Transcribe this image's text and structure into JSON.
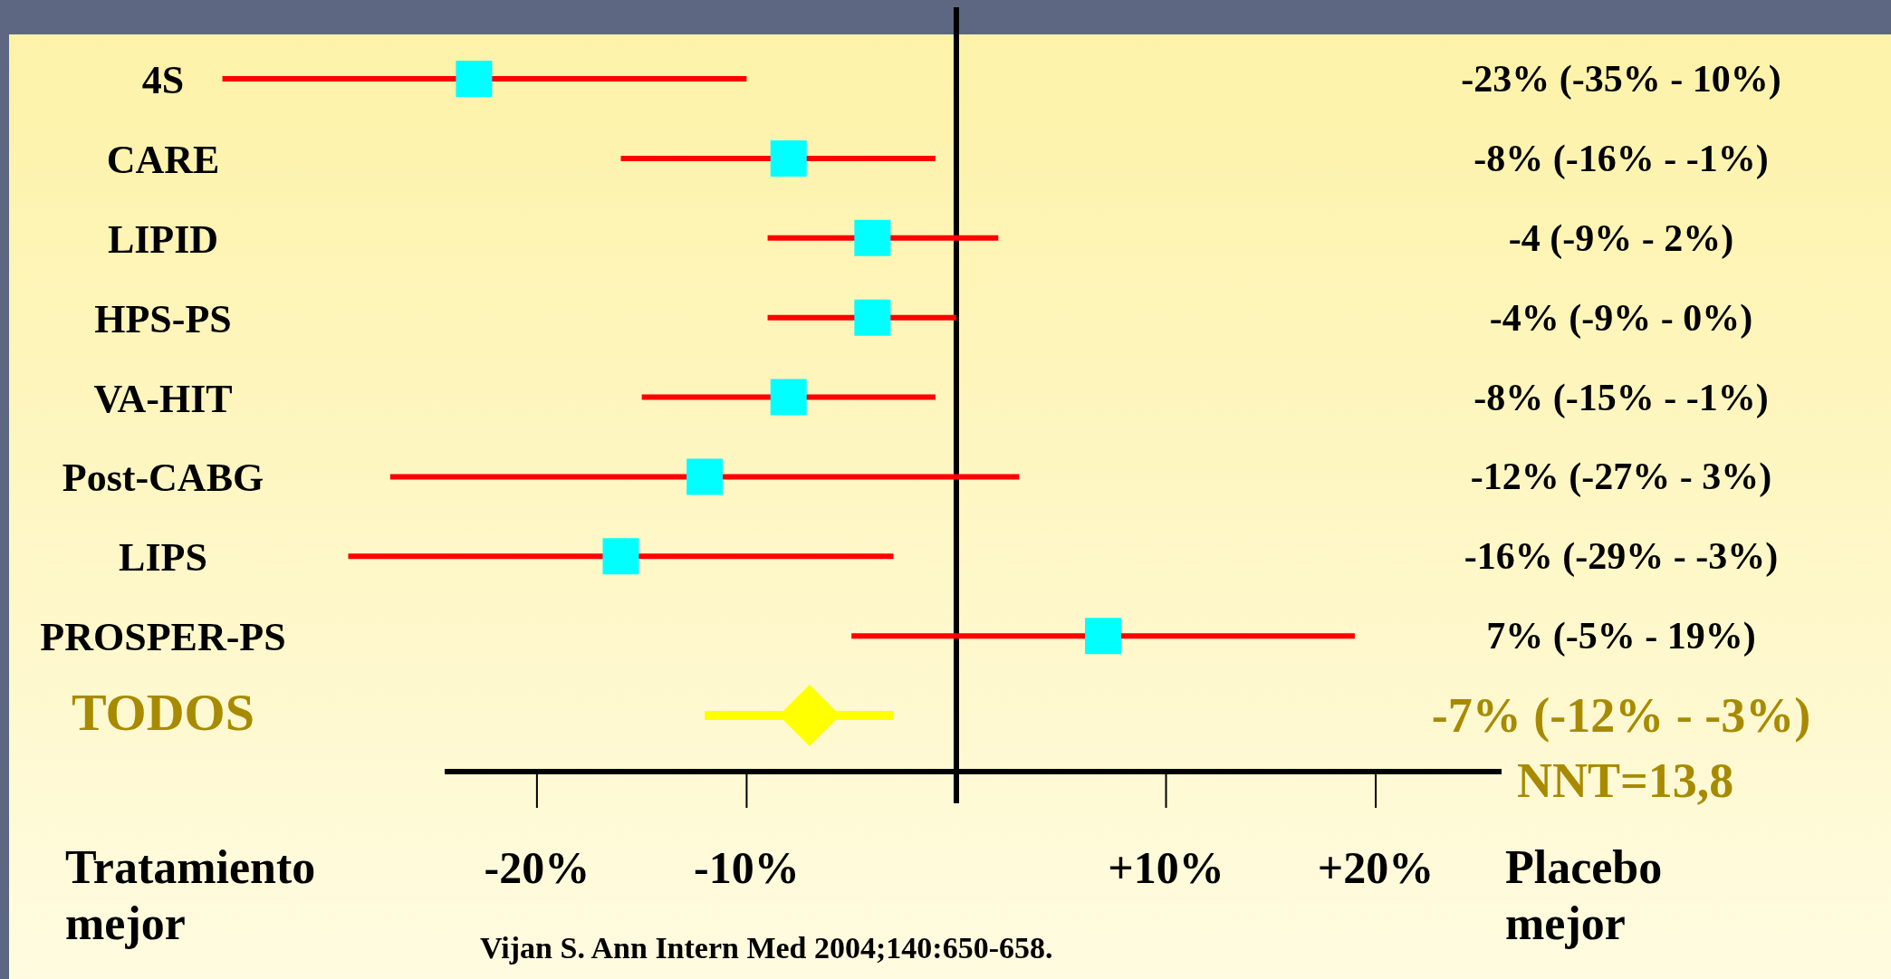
{
  "chart_data": {
    "type": "scatter",
    "orientation": "horizontal",
    "categories": [
      "4S",
      "CARE",
      "LIPID",
      "HPS-PS",
      "VA-HIT",
      "Post-CABG",
      "LIPS",
      "PROSPER-PS",
      "TODOS"
    ],
    "series": [
      {
        "color": "#00ffff",
        "marker": "square",
        "values": [
          -23,
          -8,
          -4,
          -4,
          -8,
          -12,
          -16,
          7,
          null
        ],
        "errors": [
          [
            -35,
            -10
          ],
          [
            -16,
            -1
          ],
          [
            -9,
            2
          ],
          [
            -9,
            0
          ],
          [
            -15,
            -1
          ],
          [
            -27,
            3
          ],
          [
            -29,
            -3
          ],
          [
            -5,
            19
          ],
          null
        ]
      },
      {
        "color": "#ffff00",
        "marker": "diamond",
        "values": [
          null,
          null,
          null,
          null,
          null,
          null,
          null,
          null,
          -7
        ],
        "errors": [
          null,
          null,
          null,
          null,
          null,
          null,
          null,
          null,
          [
            -12,
            -3
          ]
        ]
      }
    ],
    "xlim": [
      -24.4,
      26
    ],
    "xticks": [
      {
        "value": -20,
        "label": "-20%"
      },
      {
        "value": -10,
        "label": "-10%"
      },
      {
        "value": 10,
        "label": "+10%"
      },
      {
        "value": 20,
        "label": "+20%"
      }
    ],
    "ref_lines": [
      {
        "axis": "x",
        "value": 0,
        "color": "#000000"
      }
    ],
    "grid": false,
    "legend": false,
    "annotations": [
      "Tratamiento mejor",
      "Placebo mejor",
      "NNT=13,8",
      "Vijan S. Ann Intern Med 2004;140:650-658.",
      "-23% (-35% - 10%)",
      "-8% (-16% - -1%)",
      "-4 (-9% - 2%)",
      "-4% (-9% - 0%)",
      "-8% (-15% - -1%)",
      "-12% (-27% - 3%)",
      "-16% (-29% - -3%)",
      "7% (-5% - 19%)",
      "-7% (-12% - -3%)"
    ]
  }
}
